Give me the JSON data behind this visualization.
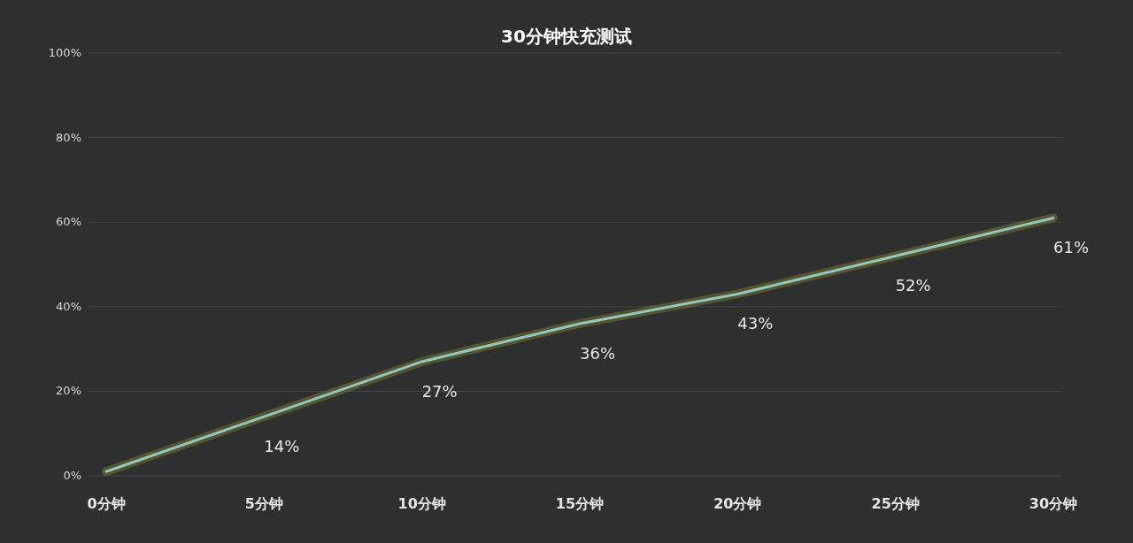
{
  "chart_data": {
    "type": "line",
    "title": "30分钟快充测试",
    "categories": [
      "0分钟",
      "5分钟",
      "10分钟",
      "15分钟",
      "20分钟",
      "25分钟",
      "30分钟"
    ],
    "series": [
      {
        "color": "#8ec9c2",
        "values": [
          1,
          14,
          27,
          36,
          43,
          52,
          61
        ],
        "value_labels": [
          null,
          "14%",
          "27%",
          "36%",
          "43%",
          "52%",
          "61%"
        ]
      }
    ],
    "ylim": [
      0,
      100
    ],
    "yticks": [
      {
        "value": 0,
        "label": "0%"
      },
      {
        "value": 20,
        "label": "20%"
      },
      {
        "value": 40,
        "label": "40%"
      },
      {
        "value": 60,
        "label": "60%"
      },
      {
        "value": 80,
        "label": "80%"
      },
      {
        "value": 100,
        "label": "100%"
      }
    ],
    "grid": "y",
    "marker": "none",
    "line_style": "solid"
  }
}
